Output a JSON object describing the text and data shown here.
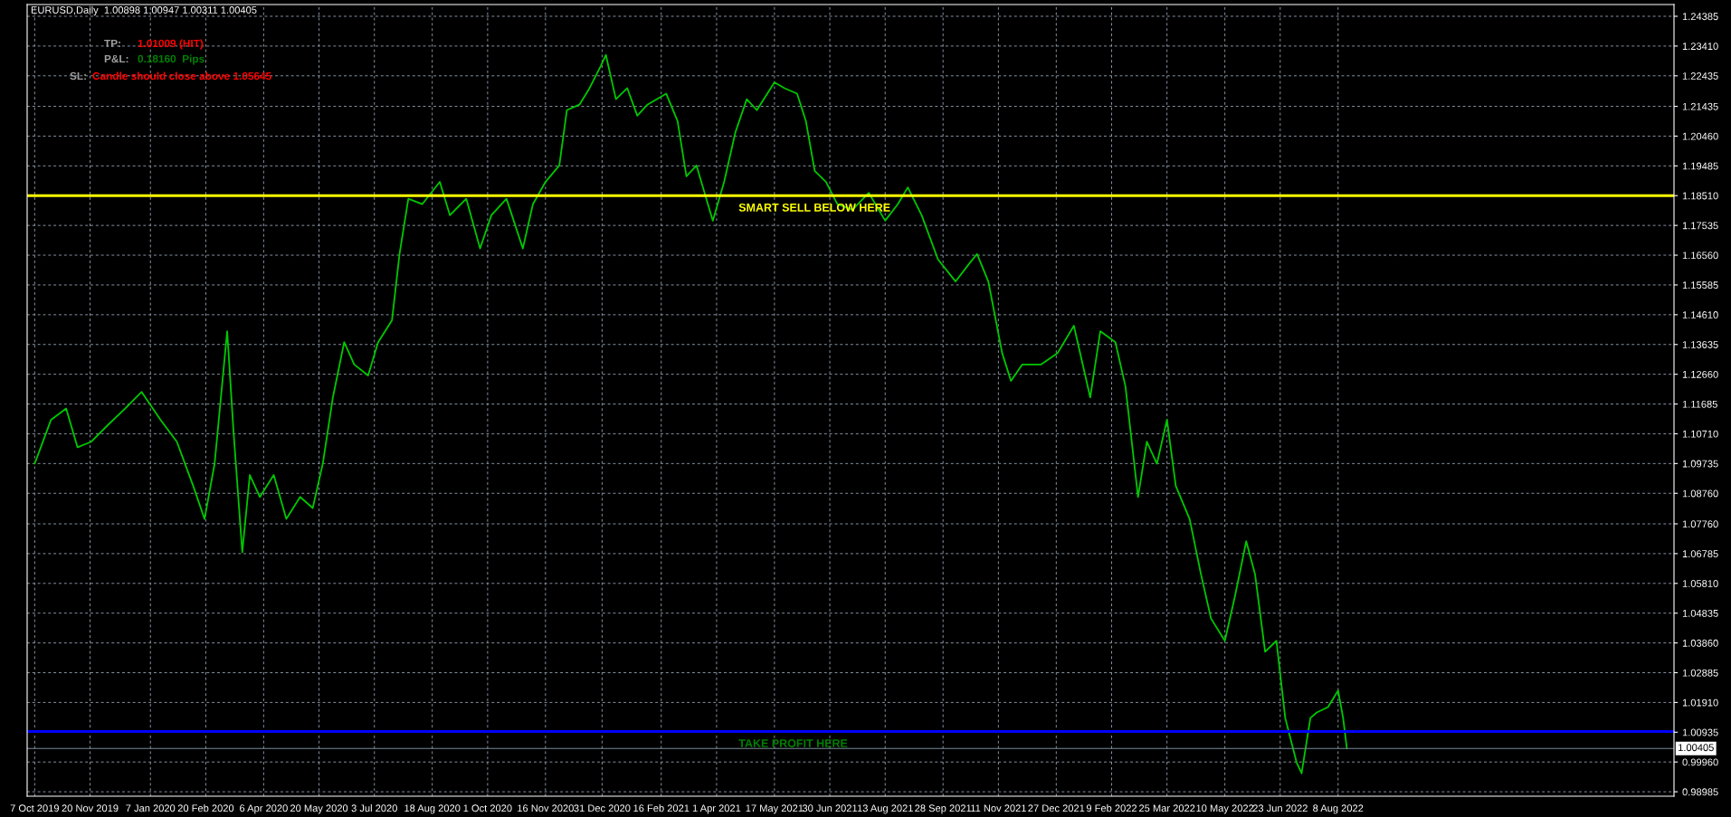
{
  "chart_data": {
    "type": "line",
    "title": "EURUSD,Daily  1.00898 1.00947 1.00311 1.00405",
    "annotations": [
      "TP:",
      "1.01009 (HIT)",
      "P&L:",
      "0.18160  Pips",
      "SL:",
      "Candle should close above 1.05645"
    ],
    "series": [
      {
        "color": "#00c800",
        "x": [
          "2019-10-07",
          "2019-10-20",
          "2019-11-01",
          "2019-11-10",
          "2019-11-21",
          "2019-12-04",
          "2019-12-18",
          "2019-12-31",
          "2020-01-15",
          "2020-01-28",
          "2020-02-10",
          "2020-02-19",
          "2020-02-27",
          "2020-03-08",
          "2020-03-13",
          "2020-03-20",
          "2020-03-26",
          "2020-04-03",
          "2020-04-14",
          "2020-04-24",
          "2020-05-05",
          "2020-05-15",
          "2020-05-23",
          "2020-05-31",
          "2020-06-09",
          "2020-06-17",
          "2020-06-28",
          "2020-07-06",
          "2020-07-17",
          "2020-07-23",
          "2020-07-30",
          "2020-08-10",
          "2020-08-24",
          "2020-09-01",
          "2020-09-14",
          "2020-09-25",
          "2020-10-04",
          "2020-10-16",
          "2020-10-29",
          "2020-11-06",
          "2020-11-16",
          "2020-11-27",
          "2020-12-03",
          "2020-12-13",
          "2020-12-21",
          "2020-12-30",
          "2021-01-03",
          "2021-01-11",
          "2021-01-20",
          "2021-01-28",
          "2021-02-05",
          "2021-02-20",
          "2021-03-01",
          "2021-03-08",
          "2021-03-16",
          "2021-03-29",
          "2021-04-07",
          "2021-04-16",
          "2021-04-25",
          "2021-05-03",
          "2021-05-17",
          "2021-05-25",
          "2021-06-04",
          "2021-06-11",
          "2021-06-18",
          "2021-06-27",
          "2021-07-06",
          "2021-07-18",
          "2021-07-31",
          "2021-08-13",
          "2021-08-23",
          "2021-08-31",
          "2021-09-11",
          "2021-09-24",
          "2021-10-08",
          "2021-10-18",
          "2021-10-25",
          "2021-11-03",
          "2021-11-14",
          "2021-11-21",
          "2021-11-30",
          "2021-12-15",
          "2021-12-28",
          "2022-01-10",
          "2022-01-23",
          "2022-01-31",
          "2022-02-12",
          "2022-02-20",
          "2022-03-02",
          "2022-03-09",
          "2022-03-17",
          "2022-03-25",
          "2022-04-01",
          "2022-04-12",
          "2022-04-21",
          "2022-04-29",
          "2022-05-10",
          "2022-05-18",
          "2022-05-27",
          "2022-06-03",
          "2022-06-11",
          "2022-06-20",
          "2022-06-27",
          "2022-07-06",
          "2022-07-10",
          "2022-07-17",
          "2022-07-22",
          "2022-07-31",
          "2022-08-08",
          "2022-08-12",
          "2022-08-15"
        ],
        "values": [
          1.0973,
          1.1117,
          1.1154,
          1.1027,
          1.1045,
          1.1099,
          1.1154,
          1.1208,
          1.1117,
          1.1045,
          1.09,
          1.0792,
          1.0973,
          1.1407,
          1.1081,
          1.0683,
          1.0936,
          1.0864,
          1.0936,
          1.0792,
          1.0864,
          1.0828,
          1.0973,
          1.119,
          1.1371,
          1.1298,
          1.1262,
          1.1371,
          1.1443,
          1.166,
          1.1841,
          1.1823,
          1.1896,
          1.1787,
          1.1841,
          1.1678,
          1.1787,
          1.1841,
          1.1678,
          1.1823,
          1.1896,
          1.195,
          1.2131,
          1.2149,
          1.2203,
          1.2276,
          1.2312,
          1.2167,
          1.2203,
          1.2113,
          1.2149,
          1.2185,
          1.2095,
          1.1914,
          1.195,
          1.1769,
          1.1896,
          1.2059,
          1.2167,
          1.2131,
          1.2222,
          1.2203,
          1.2185,
          1.2095,
          1.1932,
          1.1896,
          1.1823,
          1.1805,
          1.186,
          1.1769,
          1.1823,
          1.1878,
          1.1787,
          1.1642,
          1.157,
          1.1624,
          1.166,
          1.157,
          1.1335,
          1.1244,
          1.1298,
          1.1298,
          1.1335,
          1.1425,
          1.119,
          1.1407,
          1.1371,
          1.1226,
          1.0864,
          1.1045,
          1.0973,
          1.1117,
          1.09,
          1.0792,
          1.0611,
          1.0466,
          1.0393,
          1.0538,
          1.0719,
          1.0611,
          1.0357,
          1.0393,
          1.014,
          0.9995,
          0.9959,
          1.014,
          1.0158,
          1.0176,
          1.023,
          1.014,
          1.004
        ]
      }
    ],
    "xlim": [
      "2019-10-01",
      "2023-05-02"
    ],
    "xticks": [
      {
        "value": "2019-10-07",
        "label": "7 Oct 2019"
      },
      {
        "value": "2019-11-20",
        "label": "20 Nov 2019"
      },
      {
        "value": "2020-01-07",
        "label": "7 Jan 2020"
      },
      {
        "value": "2020-02-20",
        "label": "20 Feb 2020"
      },
      {
        "value": "2020-04-06",
        "label": "6 Apr 2020"
      },
      {
        "value": "2020-05-20",
        "label": "20 May 2020"
      },
      {
        "value": "2020-07-03",
        "label": "3 Jul 2020"
      },
      {
        "value": "2020-08-18",
        "label": "18 Aug 2020"
      },
      {
        "value": "2020-10-01",
        "label": "1 Oct 2020"
      },
      {
        "value": "2020-11-16",
        "label": "16 Nov 2020"
      },
      {
        "value": "2020-12-31",
        "label": "31 Dec 2020"
      },
      {
        "value": "2021-02-16",
        "label": "16 Feb 2021"
      },
      {
        "value": "2021-04-01",
        "label": "1 Apr 2021"
      },
      {
        "value": "2021-05-17",
        "label": "17 May 2021"
      },
      {
        "value": "2021-06-30",
        "label": "30 Jun 2021"
      },
      {
        "value": "2021-08-13",
        "label": "13 Aug 2021"
      },
      {
        "value": "2021-09-28",
        "label": "28 Sep 2021"
      },
      {
        "value": "2021-11-11",
        "label": "11 Nov 2021"
      },
      {
        "value": "2021-12-27",
        "label": "27 Dec 2021"
      },
      {
        "value": "2022-02-09",
        "label": "9 Feb 2022"
      },
      {
        "value": "2022-03-25",
        "label": "25 Mar 2022"
      },
      {
        "value": "2022-05-10",
        "label": "10 May 2022"
      },
      {
        "value": "2022-06-23",
        "label": "23 Jun 2022"
      },
      {
        "value": "2022-08-08",
        "label": "8 Aug 2022"
      }
    ],
    "ylim": [
      0.9884,
      1.2477
    ],
    "yticks": [
      {
        "value": 0.98985,
        "label": "0.98985"
      },
      {
        "value": 0.9996,
        "label": "0.99960"
      },
      {
        "value": 1.00935,
        "label": "1.00935"
      },
      {
        "value": 1.0191,
        "label": "1.01910"
      },
      {
        "value": 1.02885,
        "label": "1.02885"
      },
      {
        "value": 1.0386,
        "label": "1.03860"
      },
      {
        "value": 1.04835,
        "label": "1.04835"
      },
      {
        "value": 1.0581,
        "label": "1.05810"
      },
      {
        "value": 1.06785,
        "label": "1.06785"
      },
      {
        "value": 1.0776,
        "label": "1.07760"
      },
      {
        "value": 1.0876,
        "label": "1.08760"
      },
      {
        "value": 1.09735,
        "label": "1.09735"
      },
      {
        "value": 1.1071,
        "label": "1.10710"
      },
      {
        "value": 1.11685,
        "label": "1.11685"
      },
      {
        "value": 1.1266,
        "label": "1.12660"
      },
      {
        "value": 1.13635,
        "label": "1.13635"
      },
      {
        "value": 1.1461,
        "label": "1.14610"
      },
      {
        "value": 1.15585,
        "label": "1.15585"
      },
      {
        "value": 1.1656,
        "label": "1.16560"
      },
      {
        "value": 1.17535,
        "label": "1.17535"
      },
      {
        "value": 1.1851,
        "label": "1.18510"
      },
      {
        "value": 1.19485,
        "label": "1.19485"
      },
      {
        "value": 1.2046,
        "label": "1.20460"
      },
      {
        "value": 1.21435,
        "label": "1.21435"
      },
      {
        "value": 1.22435,
        "label": "1.22435"
      },
      {
        "value": 1.2341,
        "label": "1.23410"
      },
      {
        "value": 1.24385,
        "label": "1.24385"
      }
    ],
    "ref_lines": [
      {
        "axis": "y",
        "value": 1.1851,
        "label": "SMART SELL BELOW HERE",
        "color": "#ffff00"
      },
      {
        "axis": "y",
        "value": 1.0096,
        "label": "TAKE PROFIT HERE",
        "color": "#0000ff"
      },
      {
        "axis": "y",
        "value": 1.00405,
        "label": "1.00405",
        "color": "#778899"
      }
    ],
    "grid": true,
    "legend": false,
    "marker": "none",
    "line_style": "solid"
  }
}
